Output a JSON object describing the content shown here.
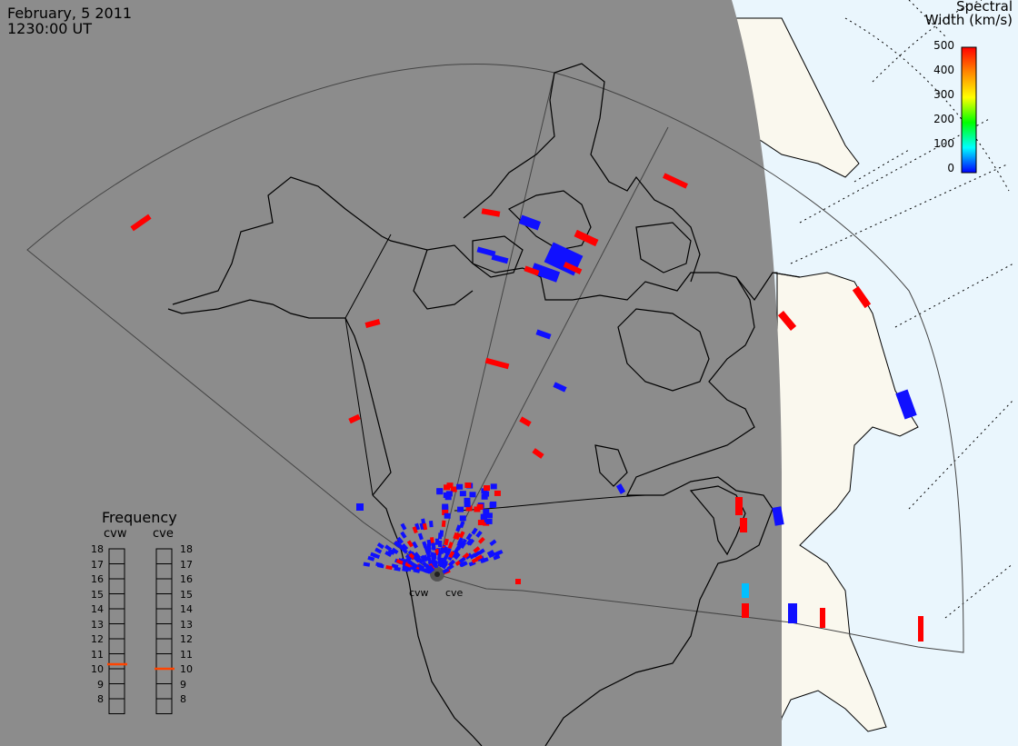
{
  "header": {
    "date": "February, 5 2011",
    "time": "1230:00 UT"
  },
  "colorbar": {
    "title_line1": "Spectral",
    "title_line2": "Width (km/s)",
    "ticks": [
      "500",
      "400",
      "300",
      "200",
      "100",
      "0"
    ],
    "colors": [
      "#ff0000",
      "#ff8800",
      "#ffff00",
      "#00ff00",
      "#00ffff",
      "#0000ff"
    ]
  },
  "frequency": {
    "title": "Frequency",
    "radars": [
      "cvw",
      "cve"
    ],
    "ticks": [
      "18",
      "17",
      "16",
      "15",
      "14",
      "13",
      "12",
      "11",
      "10",
      "9",
      "8"
    ],
    "cvw_value_mhz": 10.8,
    "cve_value_mhz": 10.5,
    "marker_color": "#ff4400"
  },
  "radar_labels": {
    "west": "cvw",
    "east": "cve"
  },
  "colors": {
    "night": "#8c8c8c",
    "day_land": "#faf8ee",
    "day_ocean": "#eaf6fd",
    "echo_low": "#1010ff",
    "echo_high": "#ff0000",
    "echo_mid": "#00c0ff"
  }
}
